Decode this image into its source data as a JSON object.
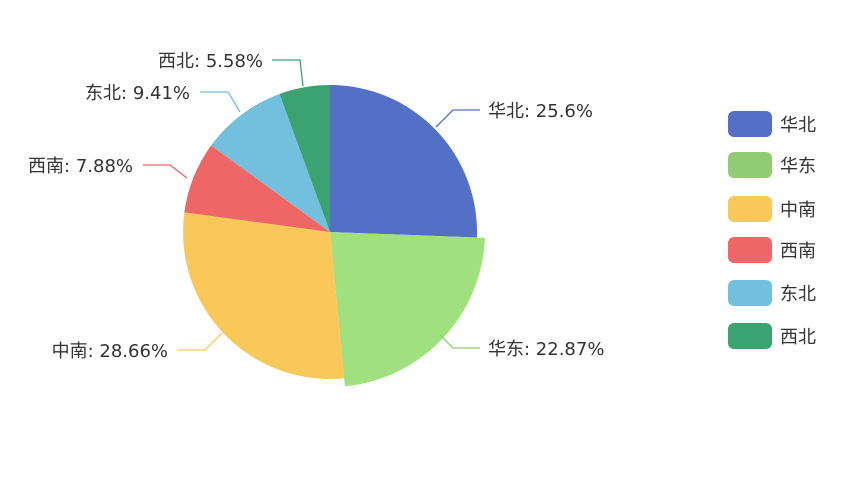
{
  "chart_data": {
    "type": "pie",
    "categories": [
      "华北",
      "华东",
      "中南",
      "西南",
      "东北",
      "西北"
    ],
    "values": [
      25.6,
      22.87,
      28.66,
      7.88,
      9.41,
      5.58
    ],
    "labels": [
      "华北: 25.6%",
      "华东: 22.87%",
      "中南: 28.66%",
      "西南: 7.88%",
      "东北: 9.41%",
      "西北: 5.58%"
    ],
    "colors": [
      "#5470c6",
      "#91cc75",
      "#fac858",
      "#ee6666",
      "#73c0de",
      "#3ba272"
    ],
    "highlighted": "华东",
    "highlight_color": "#a0e07f",
    "legend": {
      "position": "right",
      "items": [
        "华北",
        "华东",
        "中南",
        "西南",
        "东北",
        "西北"
      ]
    }
  }
}
